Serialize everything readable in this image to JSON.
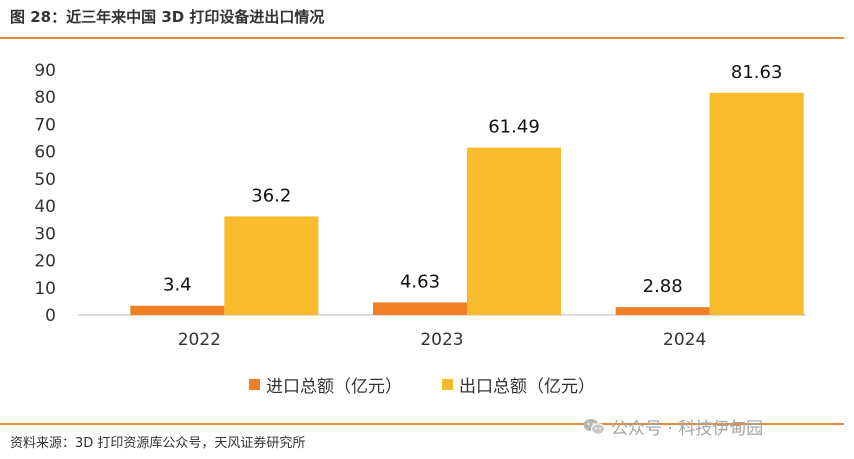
{
  "header": {
    "title": "图 28：近三年来中国 3D 打印设备进出口情况"
  },
  "footer": {
    "source": "资料来源：3D 打印资源库公众号，天风证券研究所",
    "watermark": "公众号 · 科技伊甸园",
    "watermark_icon": "wechat-icon"
  },
  "colors": {
    "accent_rule": "#e88a3a",
    "import": "#f07f26",
    "export": "#f8bb2b",
    "axis": "#bfbfbf",
    "text": "#333333"
  },
  "chart_data": {
    "type": "bar",
    "title": "",
    "xlabel": "",
    "ylabel": "",
    "categories": [
      "2022",
      "2023",
      "2024"
    ],
    "series": [
      {
        "name": "进口总额（亿元）",
        "values": [
          3.4,
          4.63,
          2.88
        ],
        "data_labels": [
          "3.4",
          "4.63",
          "2.88"
        ]
      },
      {
        "name": "出口总额（亿元）",
        "values": [
          36.2,
          61.49,
          81.63
        ],
        "data_labels": [
          "36.2",
          "61.49",
          "81.63"
        ]
      }
    ],
    "yticks": [
      "0",
      "10",
      "20",
      "30",
      "40",
      "50",
      "60",
      "70",
      "80",
      "90"
    ],
    "ylim": [
      0,
      90
    ],
    "grid": false,
    "legend_position": "bottom"
  }
}
